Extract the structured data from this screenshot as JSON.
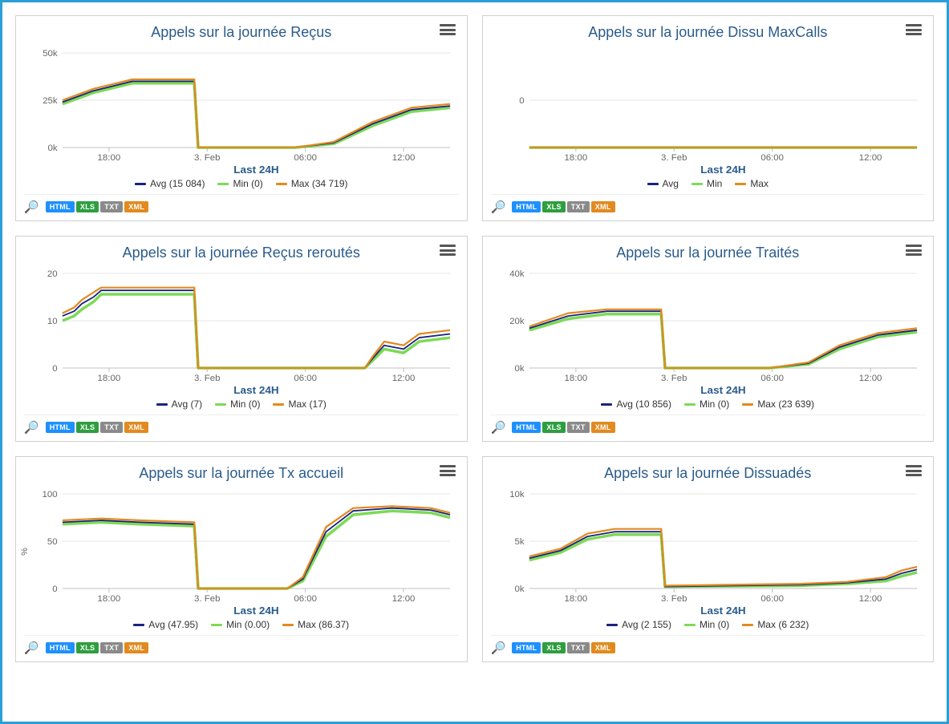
{
  "export_formats": [
    {
      "label": "HTML",
      "color": "#1e90ff"
    },
    {
      "label": "XLS",
      "color": "#2e9e3f"
    },
    {
      "label": "TXT",
      "color": "#8a8a8a"
    },
    {
      "label": "XML",
      "color": "#e28a1f"
    }
  ],
  "series_colors": {
    "avg": "#1a237e",
    "min": "#7ed957",
    "max": "#e28a1f"
  },
  "x_axis_title": "Last 24H",
  "x_ticks": [
    "18:00",
    "3. Feb",
    "06:00",
    "12:00"
  ],
  "grid_color": "#e6e6e6",
  "axis_color": "#c0c0c0",
  "panels": [
    {
      "id": "recus",
      "title": "Appels sur la journée Reçus",
      "y_ticks": [
        "0k",
        "25k",
        "50k"
      ],
      "y_title": null,
      "legend": [
        {
          "series": "avg",
          "label": "Avg (15 084)"
        },
        {
          "series": "min",
          "label": "Min (0)"
        },
        {
          "series": "max",
          "label": "Max (34 719)"
        }
      ],
      "lines": {
        "avg": [
          [
            0,
            0.48
          ],
          [
            0.08,
            0.6
          ],
          [
            0.18,
            0.7
          ],
          [
            0.34,
            0.7
          ],
          [
            0.35,
            0.0
          ],
          [
            0.6,
            0.0
          ],
          [
            0.7,
            0.05
          ],
          [
            0.8,
            0.25
          ],
          [
            0.9,
            0.4
          ],
          [
            1.0,
            0.44
          ]
        ],
        "min": [
          [
            0,
            0.46
          ],
          [
            0.08,
            0.58
          ],
          [
            0.18,
            0.68
          ],
          [
            0.34,
            0.68
          ],
          [
            0.35,
            0.0
          ],
          [
            0.6,
            0.0
          ],
          [
            0.7,
            0.04
          ],
          [
            0.8,
            0.23
          ],
          [
            0.9,
            0.38
          ],
          [
            1.0,
            0.42
          ]
        ],
        "max": [
          [
            0,
            0.5
          ],
          [
            0.08,
            0.62
          ],
          [
            0.18,
            0.72
          ],
          [
            0.34,
            0.72
          ],
          [
            0.35,
            0.0
          ],
          [
            0.6,
            0.0
          ],
          [
            0.7,
            0.06
          ],
          [
            0.8,
            0.27
          ],
          [
            0.9,
            0.42
          ],
          [
            1.0,
            0.46
          ]
        ]
      }
    },
    {
      "id": "dissu",
      "title": "Appels sur la journée Dissu MaxCalls",
      "y_ticks": [
        "0"
      ],
      "y_title": null,
      "legend": [
        {
          "series": "avg",
          "label": "Avg"
        },
        {
          "series": "min",
          "label": "Min"
        },
        {
          "series": "max",
          "label": "Max"
        }
      ],
      "lines": {
        "avg": [
          [
            0,
            0.0
          ],
          [
            1.0,
            0.0
          ]
        ],
        "min": [
          [
            0,
            0.0
          ],
          [
            1.0,
            0.0
          ]
        ],
        "max": [
          [
            0,
            0.0
          ],
          [
            1.0,
            0.0
          ]
        ]
      }
    },
    {
      "id": "reroutes",
      "title": "Appels sur la journée Reçus reroutés",
      "y_ticks": [
        "0",
        "10",
        "20"
      ],
      "y_title": null,
      "legend": [
        {
          "series": "avg",
          "label": "Avg (7)"
        },
        {
          "series": "min",
          "label": "Min (0)"
        },
        {
          "series": "max",
          "label": "Max (17)"
        }
      ],
      "lines": {
        "avg": [
          [
            0,
            0.55
          ],
          [
            0.03,
            0.6
          ],
          [
            0.05,
            0.68
          ],
          [
            0.08,
            0.75
          ],
          [
            0.1,
            0.82
          ],
          [
            0.34,
            0.82
          ],
          [
            0.35,
            0.0
          ],
          [
            0.78,
            0.0
          ],
          [
            0.8,
            0.1
          ],
          [
            0.83,
            0.24
          ],
          [
            0.88,
            0.2
          ],
          [
            0.92,
            0.32
          ],
          [
            1.0,
            0.36
          ]
        ],
        "min": [
          [
            0,
            0.5
          ],
          [
            0.03,
            0.55
          ],
          [
            0.05,
            0.62
          ],
          [
            0.08,
            0.7
          ],
          [
            0.1,
            0.78
          ],
          [
            0.34,
            0.78
          ],
          [
            0.35,
            0.0
          ],
          [
            0.78,
            0.0
          ],
          [
            0.8,
            0.08
          ],
          [
            0.83,
            0.2
          ],
          [
            0.88,
            0.16
          ],
          [
            0.92,
            0.28
          ],
          [
            1.0,
            0.32
          ]
        ],
        "max": [
          [
            0,
            0.58
          ],
          [
            0.03,
            0.64
          ],
          [
            0.05,
            0.72
          ],
          [
            0.08,
            0.8
          ],
          [
            0.1,
            0.85
          ],
          [
            0.34,
            0.85
          ],
          [
            0.35,
            0.0
          ],
          [
            0.78,
            0.0
          ],
          [
            0.8,
            0.12
          ],
          [
            0.83,
            0.28
          ],
          [
            0.88,
            0.24
          ],
          [
            0.92,
            0.36
          ],
          [
            1.0,
            0.4
          ]
        ]
      }
    },
    {
      "id": "traites",
      "title": "Appels sur la journée Traités",
      "y_ticks": [
        "0k",
        "20k",
        "40k"
      ],
      "y_title": null,
      "legend": [
        {
          "series": "avg",
          "label": "Avg (10 856)"
        },
        {
          "series": "min",
          "label": "Min (0)"
        },
        {
          "series": "max",
          "label": "Max (23 639)"
        }
      ],
      "lines": {
        "avg": [
          [
            0,
            0.42
          ],
          [
            0.1,
            0.55
          ],
          [
            0.2,
            0.6
          ],
          [
            0.34,
            0.6
          ],
          [
            0.35,
            0.0
          ],
          [
            0.62,
            0.0
          ],
          [
            0.72,
            0.05
          ],
          [
            0.8,
            0.22
          ],
          [
            0.9,
            0.35
          ],
          [
            1.0,
            0.4
          ]
        ],
        "min": [
          [
            0,
            0.4
          ],
          [
            0.1,
            0.52
          ],
          [
            0.2,
            0.57
          ],
          [
            0.34,
            0.57
          ],
          [
            0.35,
            0.0
          ],
          [
            0.62,
            0.0
          ],
          [
            0.72,
            0.04
          ],
          [
            0.8,
            0.2
          ],
          [
            0.9,
            0.33
          ],
          [
            1.0,
            0.38
          ]
        ],
        "max": [
          [
            0,
            0.44
          ],
          [
            0.1,
            0.58
          ],
          [
            0.2,
            0.62
          ],
          [
            0.34,
            0.62
          ],
          [
            0.35,
            0.0
          ],
          [
            0.62,
            0.0
          ],
          [
            0.72,
            0.06
          ],
          [
            0.8,
            0.24
          ],
          [
            0.9,
            0.37
          ],
          [
            1.0,
            0.42
          ]
        ]
      }
    },
    {
      "id": "txaccueil",
      "title": "Appels sur la journée Tx accueil",
      "y_ticks": [
        "0",
        "50",
        "100"
      ],
      "y_title": "%",
      "legend": [
        {
          "series": "avg",
          "label": "Avg (47.95)"
        },
        {
          "series": "min",
          "label": "Min (0.00)"
        },
        {
          "series": "max",
          "label": "Max (86.37)"
        }
      ],
      "lines": {
        "avg": [
          [
            0,
            0.7
          ],
          [
            0.1,
            0.72
          ],
          [
            0.2,
            0.7
          ],
          [
            0.34,
            0.68
          ],
          [
            0.35,
            0.0
          ],
          [
            0.58,
            0.0
          ],
          [
            0.62,
            0.1
          ],
          [
            0.68,
            0.6
          ],
          [
            0.75,
            0.82
          ],
          [
            0.85,
            0.85
          ],
          [
            0.95,
            0.83
          ],
          [
            1.0,
            0.78
          ]
        ],
        "min": [
          [
            0,
            0.68
          ],
          [
            0.1,
            0.7
          ],
          [
            0.2,
            0.68
          ],
          [
            0.34,
            0.66
          ],
          [
            0.35,
            0.0
          ],
          [
            0.58,
            0.0
          ],
          [
            0.62,
            0.08
          ],
          [
            0.68,
            0.55
          ],
          [
            0.75,
            0.78
          ],
          [
            0.85,
            0.82
          ],
          [
            0.95,
            0.8
          ],
          [
            1.0,
            0.75
          ]
        ],
        "max": [
          [
            0,
            0.72
          ],
          [
            0.1,
            0.74
          ],
          [
            0.2,
            0.72
          ],
          [
            0.34,
            0.7
          ],
          [
            0.35,
            0.0
          ],
          [
            0.58,
            0.0
          ],
          [
            0.62,
            0.12
          ],
          [
            0.68,
            0.65
          ],
          [
            0.75,
            0.85
          ],
          [
            0.85,
            0.87
          ],
          [
            0.95,
            0.85
          ],
          [
            1.0,
            0.8
          ]
        ]
      }
    },
    {
      "id": "dissuades",
      "title": "Appels sur la journée Dissuadés",
      "y_ticks": [
        "0k",
        "5k",
        "10k"
      ],
      "y_title": null,
      "legend": [
        {
          "series": "avg",
          "label": "Avg (2 155)"
        },
        {
          "series": "min",
          "label": "Min (0)"
        },
        {
          "series": "max",
          "label": "Max (6 232)"
        }
      ],
      "lines": {
        "avg": [
          [
            0,
            0.32
          ],
          [
            0.08,
            0.4
          ],
          [
            0.15,
            0.55
          ],
          [
            0.22,
            0.6
          ],
          [
            0.34,
            0.6
          ],
          [
            0.35,
            0.02
          ],
          [
            0.7,
            0.04
          ],
          [
            0.82,
            0.06
          ],
          [
            0.92,
            0.1
          ],
          [
            0.96,
            0.16
          ],
          [
            1.0,
            0.2
          ]
        ],
        "min": [
          [
            0,
            0.3
          ],
          [
            0.08,
            0.38
          ],
          [
            0.15,
            0.52
          ],
          [
            0.22,
            0.57
          ],
          [
            0.34,
            0.57
          ],
          [
            0.35,
            0.02
          ],
          [
            0.7,
            0.03
          ],
          [
            0.82,
            0.05
          ],
          [
            0.92,
            0.08
          ],
          [
            0.96,
            0.13
          ],
          [
            1.0,
            0.17
          ]
        ],
        "max": [
          [
            0,
            0.34
          ],
          [
            0.08,
            0.42
          ],
          [
            0.15,
            0.58
          ],
          [
            0.22,
            0.63
          ],
          [
            0.34,
            0.63
          ],
          [
            0.35,
            0.03
          ],
          [
            0.7,
            0.05
          ],
          [
            0.82,
            0.07
          ],
          [
            0.92,
            0.12
          ],
          [
            0.96,
            0.19
          ],
          [
            1.0,
            0.23
          ]
        ]
      }
    }
  ]
}
